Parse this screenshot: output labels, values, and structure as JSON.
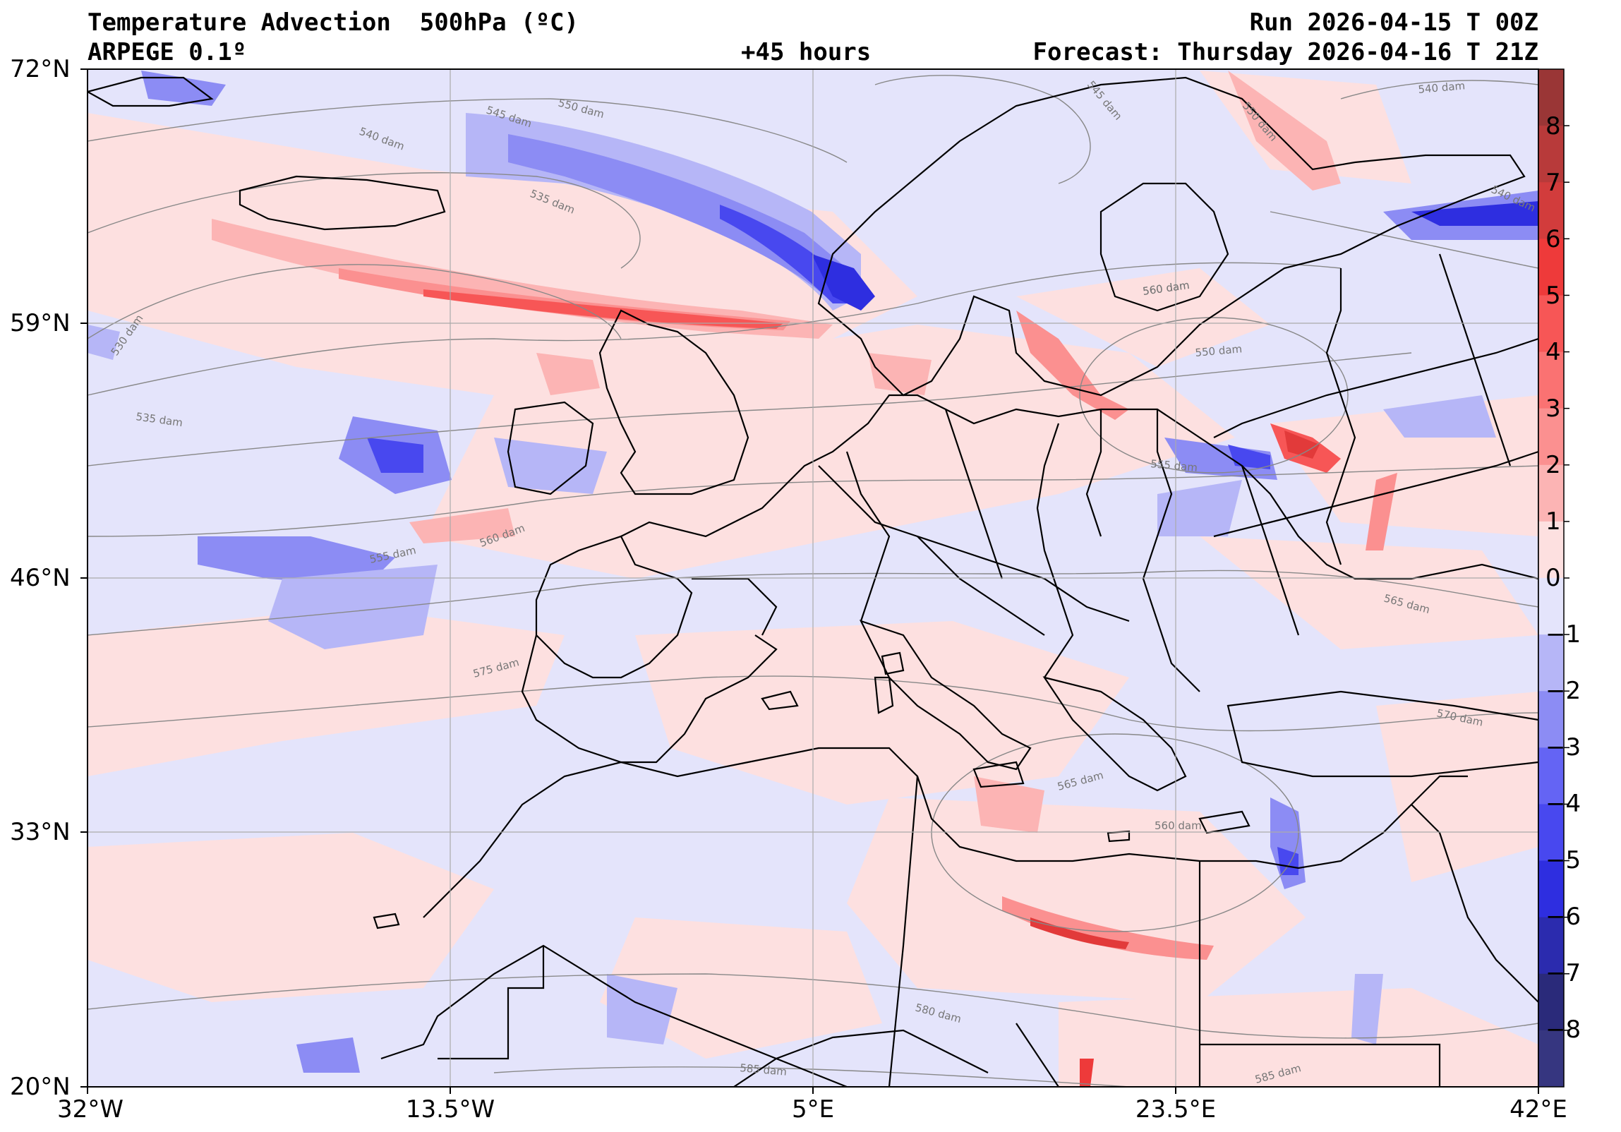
{
  "header": {
    "title": "Temperature Advection  500hPa (ºC)",
    "model": "ARPEGE 0.1º",
    "lead": "+45 hours",
    "run": "Run 2026-04-15 T 00Z",
    "forecast": "Forecast: Thursday 2026-04-16 T 21Z"
  },
  "axes": {
    "lat_labels": [
      "72°N",
      "59°N",
      "46°N",
      "33°N",
      "20°N"
    ],
    "lon_labels": [
      "32°W",
      "13.5°W",
      "5°E",
      "23.5°E",
      "42°E"
    ]
  },
  "colorbar": {
    "ticks": [
      "8",
      "7",
      "6",
      "5",
      "4",
      "3",
      "2",
      "1",
      "0",
      "−1",
      "−2",
      "−3",
      "−4",
      "−5",
      "−6",
      "−7",
      "−8"
    ],
    "colors": [
      "#9a3636",
      "#b83a3a",
      "#d23c3c",
      "#ee3a3a",
      "#f75656",
      "#fa7272",
      "#fb9090",
      "#fcb4b4",
      "#fde0e0",
      "#e4e4fb",
      "#b6b6f7",
      "#8c8cf4",
      "#6464f4",
      "#4848ef",
      "#2e2ee0",
      "#2b2bae",
      "#2a2a7a",
      "#363680"
    ]
  },
  "contour_labels": [
    "540 dam",
    "550 dam",
    "545 dam",
    "535 dam",
    "530 dam",
    "535 dam",
    "555 dam",
    "560 dam",
    "575 dam",
    "560 dam",
    "550 dam",
    "555 dam",
    "565 dam",
    "570 dam",
    "565 dam",
    "560 dam",
    "580 dam",
    "585 dam",
    "585 dam",
    "540 dam",
    "540 dam",
    "560 dam",
    "545 dam",
    "550 dam"
  ]
}
